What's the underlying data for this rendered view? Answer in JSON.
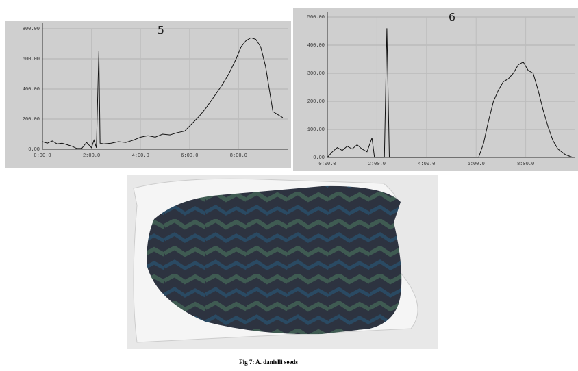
{
  "chart_data": [
    {
      "type": "line",
      "title": "5",
      "x": [
        0,
        0.2,
        0.4,
        0.6,
        0.8,
        1.0,
        1.2,
        1.4,
        1.6,
        1.8,
        2.0,
        2.1,
        2.2,
        2.3,
        2.35,
        2.5,
        2.8,
        3.1,
        3.4,
        3.7,
        4.0,
        4.3,
        4.6,
        4.9,
        5.2,
        5.5,
        5.8,
        6.1,
        6.4,
        6.7,
        7.0,
        7.3,
        7.6,
        7.9,
        8.1,
        8.3,
        8.5,
        8.7,
        8.9,
        9.1,
        9.3,
        9.4,
        9.6,
        9.8
      ],
      "values": [
        50,
        40,
        55,
        35,
        40,
        30,
        20,
        5,
        5,
        45,
        10,
        60,
        10,
        650,
        40,
        35,
        40,
        50,
        45,
        60,
        80,
        90,
        80,
        100,
        95,
        110,
        120,
        170,
        220,
        280,
        350,
        420,
        500,
        600,
        680,
        720,
        740,
        730,
        680,
        550,
        350,
        250,
        230,
        210
      ],
      "color": "#111111",
      "xlim": [
        0,
        10
      ],
      "ylim": [
        0,
        800
      ],
      "xticks": [
        {
          "value": 0,
          "label": "0:00.0"
        },
        {
          "value": 2,
          "label": "2:00.0"
        },
        {
          "value": 4,
          "label": "4:00.0"
        },
        {
          "value": 6,
          "label": "6:00.0"
        },
        {
          "value": 8,
          "label": "8:00.0"
        }
      ],
      "yticks": [
        {
          "value": 0,
          "label": "0.00"
        },
        {
          "value": 200,
          "label": "200.00"
        },
        {
          "value": 400,
          "label": "400.00"
        },
        {
          "value": 600,
          "label": "600.00"
        },
        {
          "value": 800,
          "label": "800.00"
        }
      ],
      "grid": true
    },
    {
      "type": "line",
      "title": "6",
      "x": [
        0,
        0.2,
        0.4,
        0.6,
        0.8,
        1.0,
        1.2,
        1.4,
        1.6,
        1.8,
        1.9,
        2.3,
        2.4,
        2.5,
        2.8,
        3.5,
        4.5,
        5.5,
        6.1,
        6.3,
        6.5,
        6.7,
        6.9,
        7.1,
        7.3,
        7.5,
        7.7,
        7.9,
        8.1,
        8.3,
        8.5,
        8.7,
        8.9,
        9.1,
        9.3,
        9.6,
        9.9
      ],
      "values": [
        0,
        20,
        35,
        25,
        40,
        30,
        45,
        30,
        20,
        70,
        0,
        0,
        460,
        0,
        0,
        0,
        0,
        0,
        0,
        50,
        130,
        200,
        240,
        270,
        280,
        300,
        330,
        340,
        310,
        300,
        240,
        170,
        110,
        60,
        30,
        10,
        0
      ],
      "color": "#111111",
      "xlim": [
        0,
        10
      ],
      "ylim": [
        0,
        500
      ],
      "xticks": [
        {
          "value": 0,
          "label": "0:00.0"
        },
        {
          "value": 2,
          "label": "2:00.0"
        },
        {
          "value": 4,
          "label": "4:00.0"
        },
        {
          "value": 6,
          "label": "6:00.0"
        },
        {
          "value": 8,
          "label": "8:00.0"
        }
      ],
      "yticks": [
        {
          "value": 0,
          "label": "0.00"
        },
        {
          "value": 100,
          "label": "100.00"
        },
        {
          "value": 200,
          "label": "200.00"
        },
        {
          "value": 300,
          "label": "300.00"
        },
        {
          "value": 400,
          "label": "400.00"
        },
        {
          "value": 500,
          "label": "500.00"
        }
      ],
      "grid": true
    }
  ],
  "caption": "Fig 7: A. danielli seeds"
}
